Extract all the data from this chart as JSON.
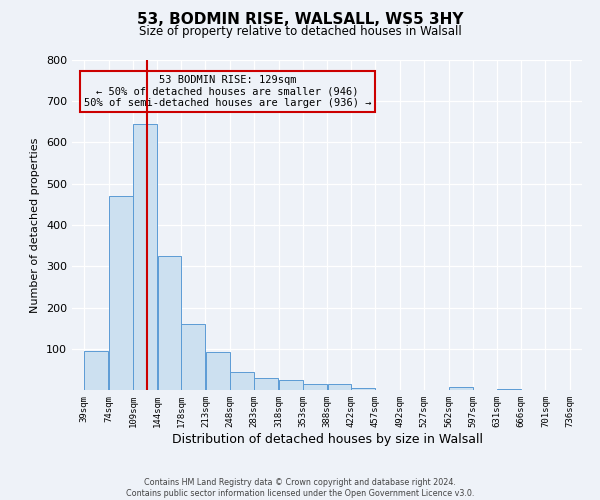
{
  "title": "53, BODMIN RISE, WALSALL, WS5 3HY",
  "subtitle": "Size of property relative to detached houses in Walsall",
  "xlabel": "Distribution of detached houses by size in Walsall",
  "ylabel": "Number of detached properties",
  "bar_values": [
    95,
    470,
    645,
    325,
    160,
    92,
    43,
    30,
    25,
    15,
    15,
    5,
    0,
    0,
    0,
    8,
    0,
    3,
    0,
    0
  ],
  "bin_labels": [
    "39sqm",
    "74sqm",
    "109sqm",
    "144sqm",
    "178sqm",
    "213sqm",
    "248sqm",
    "283sqm",
    "318sqm",
    "353sqm",
    "388sqm",
    "422sqm",
    "457sqm",
    "492sqm",
    "527sqm",
    "562sqm",
    "597sqm",
    "631sqm",
    "666sqm",
    "701sqm",
    "736sqm"
  ],
  "bar_color": "#cce0f0",
  "bar_edge_color": "#5b9bd5",
  "vline_x": 129,
  "vline_color": "#cc0000",
  "annotation_line1": "53 BODMIN RISE: 129sqm",
  "annotation_line2": "← 50% of detached houses are smaller (946)",
  "annotation_line3": "50% of semi-detached houses are larger (936) →",
  "annotation_box_color": "#cc0000",
  "ylim": [
    0,
    800
  ],
  "yticks": [
    0,
    100,
    200,
    300,
    400,
    500,
    600,
    700,
    800
  ],
  "background_color": "#eef2f8",
  "footer_line1": "Contains HM Land Registry data © Crown copyright and database right 2024.",
  "footer_line2": "Contains public sector information licensed under the Open Government Licence v3.0.",
  "bin_edges": [
    39,
    74,
    109,
    144,
    178,
    213,
    248,
    283,
    318,
    353,
    388,
    422,
    457,
    492,
    527,
    562,
    597,
    631,
    666,
    701,
    736
  ]
}
